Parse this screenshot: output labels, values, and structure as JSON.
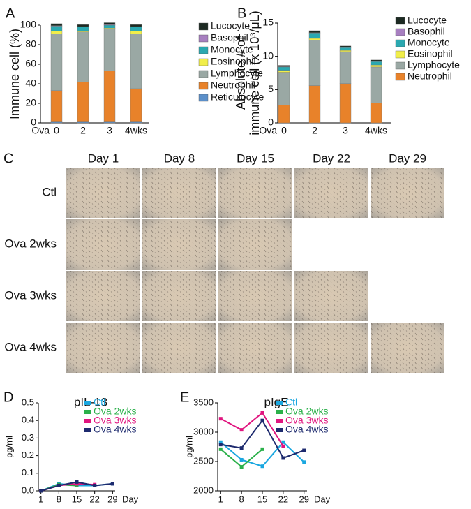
{
  "chart_data": [
    {
      "type": "bar",
      "panel": "A",
      "stacked": true,
      "ylabel": [
        "Immune cell (%)"
      ],
      "x_label": "Ova",
      "categories": [
        "0",
        "2",
        "3",
        "4wks"
      ],
      "ylim": [
        0,
        100
      ],
      "yticks": [
        0,
        20,
        40,
        60,
        80,
        100
      ],
      "series": [
        {
          "name": "Reticulocyte",
          "color": "#5b8fc9",
          "values": [
            1,
            1,
            1,
            1
          ]
        },
        {
          "name": "Neutrophil",
          "color": "#e8822a",
          "values": [
            32,
            41,
            52,
            34
          ]
        },
        {
          "name": "Lymphocyte",
          "color": "#9aa8a4",
          "values": [
            58,
            51,
            43,
            56
          ]
        },
        {
          "name": "Eosinophil",
          "color": "#f1ee4a",
          "values": [
            3,
            1,
            1,
            3
          ]
        },
        {
          "name": "Monocyte",
          "color": "#2aa8b0",
          "values": [
            5,
            4,
            3,
            4
          ]
        },
        {
          "name": "Basophil",
          "color": "#a77fc0",
          "values": [
            0.5,
            0.5,
            0.5,
            0.5
          ]
        },
        {
          "name": "Lucocyte",
          "color": "#1c2a22",
          "values": [
            2,
            2,
            2,
            2
          ]
        }
      ]
    },
    {
      "type": "bar",
      "panel": "B",
      "stacked": true,
      "ylabel": [
        "Absolute # of",
        "immune cell (x 10³/μL)"
      ],
      "x_label": "Ova",
      "categories": [
        "0",
        "2",
        "3",
        "4wks"
      ],
      "ylim": [
        0,
        15
      ],
      "yticks": [
        0,
        5,
        10,
        15
      ],
      "series": [
        {
          "name": "Neutrophil",
          "color": "#e8822a",
          "values": [
            2.7,
            5.6,
            5.9,
            3.0
          ]
        },
        {
          "name": "Lymphocyte",
          "color": "#9aa8a4",
          "values": [
            4.9,
            6.8,
            4.8,
            5.4
          ]
        },
        {
          "name": "Eosinophil",
          "color": "#f1ee4a",
          "values": [
            0.3,
            0.3,
            0.2,
            0.3
          ]
        },
        {
          "name": "Monocyte",
          "color": "#2aa8b0",
          "values": [
            0.5,
            0.8,
            0.4,
            0.5
          ]
        },
        {
          "name": "Basophil",
          "color": "#a77fc0",
          "values": [
            0.05,
            0.05,
            0.05,
            0.05
          ]
        },
        {
          "name": "Lucocyte",
          "color": "#1c2a22",
          "values": [
            0.2,
            0.3,
            0.2,
            0.2
          ]
        }
      ]
    },
    {
      "type": "line",
      "panel": "D",
      "title": "pIL-13",
      "ylabel": [
        "pg/ml"
      ],
      "xlabel": "Day",
      "x": [
        1,
        8,
        15,
        22,
        29
      ],
      "xlim": [
        0,
        30
      ],
      "xticks": [
        1,
        8,
        15,
        22,
        29
      ],
      "ylim": [
        0,
        0.5
      ],
      "yticks": [
        {
          "value": 0,
          "label": "0.0"
        },
        0.1,
        0.2,
        0.3,
        0.4,
        0.5
      ],
      "series": [
        {
          "name": "Ctl",
          "color": "#1aa7e0",
          "values": [
            0,
            0.04,
            0.03,
            0.03,
            0.04
          ]
        },
        {
          "name": "Ova 2wks",
          "color": "#2bb04a",
          "values": [
            0,
            0.035,
            0.03,
            null,
            null
          ]
        },
        {
          "name": "Ova 3wks",
          "color": "#e0157f",
          "values": [
            0,
            0.03,
            0.04,
            0.035,
            null
          ]
        },
        {
          "name": "Ova 4wks",
          "color": "#1d2a6e",
          "values": [
            0,
            0.03,
            0.05,
            0.03,
            0.04
          ]
        }
      ]
    },
    {
      "type": "line",
      "panel": "E",
      "title": "pIgE",
      "ylabel": [
        "pg/ml"
      ],
      "xlabel": "Day",
      "x": [
        1,
        8,
        15,
        22,
        29
      ],
      "xlim": [
        0,
        30
      ],
      "xticks": [
        1,
        8,
        15,
        22,
        29
      ],
      "ylim": [
        2000,
        3500
      ],
      "yticks": [
        2000,
        2500,
        3000,
        3500
      ],
      "series": [
        {
          "name": "Ctl",
          "color": "#1aa7e0",
          "values": [
            2830,
            2530,
            2420,
            2830,
            2490
          ]
        },
        {
          "name": "Ova 2wks",
          "color": "#2bb04a",
          "values": [
            2710,
            2410,
            2710,
            null,
            null
          ]
        },
        {
          "name": "Ova 3wks",
          "color": "#e0157f",
          "values": [
            3230,
            3040,
            3330,
            2760,
            null
          ]
        },
        {
          "name": "Ova 4wks",
          "color": "#1d2a6e",
          "values": [
            2790,
            2730,
            3200,
            2560,
            2690
          ]
        }
      ]
    }
  ],
  "photo_grid": {
    "panel": "C",
    "columns": [
      "Day 1",
      "Day 8",
      "Day 15",
      "Day 22",
      "Day 29"
    ],
    "rows": [
      "Ctl",
      "Ova 2wks",
      "Ova 3wks",
      "Ova 4wks"
    ]
  }
}
